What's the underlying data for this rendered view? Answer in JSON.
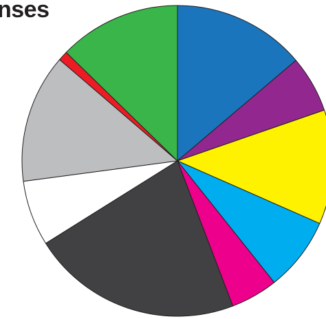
{
  "chart_data": {
    "type": "pie",
    "title": "nses",
    "start_angle_deg": 0,
    "direction": "clockwise",
    "stroke": "#231f20",
    "slices": [
      {
        "value": 13.8,
        "color": "#1b75bc"
      },
      {
        "value": 5.9,
        "color": "#92278f"
      },
      {
        "value": 11.9,
        "color": "#fff200"
      },
      {
        "value": 7.7,
        "color": "#00aeef"
      },
      {
        "value": 4.9,
        "color": "#ec008c"
      },
      {
        "value": 21.9,
        "color": "#414042"
      },
      {
        "value": 6.8,
        "color": "#ffffff"
      },
      {
        "value": 13.4,
        "color": "#bcbec0"
      },
      {
        "value": 1.0,
        "color": "#ed1c24"
      },
      {
        "value": 12.7,
        "color": "#39b54a"
      }
    ]
  }
}
